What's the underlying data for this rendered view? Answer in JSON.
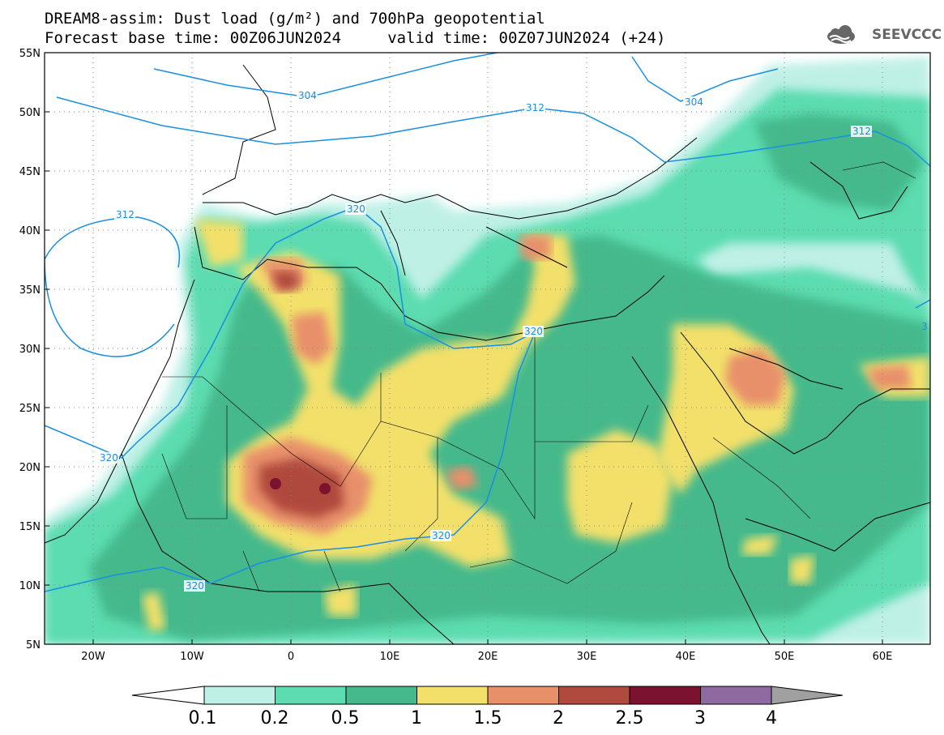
{
  "title": {
    "line1": "DREAM8-assim: Dust load (g/m²) and 700hPa geopotential",
    "line2": "Forecast base time: 00Z06JUN2024     valid time: 00Z07JUN2024 (+24)"
  },
  "logo": {
    "text": "SEEVCCC",
    "icon": "cloud-icon"
  },
  "map": {
    "lat_labels": [
      "55N",
      "50N",
      "45N",
      "40N",
      "35N",
      "30N",
      "25N",
      "20N",
      "15N",
      "10N",
      "5N"
    ],
    "lon_labels": [
      "20W",
      "10W",
      "0",
      "10E",
      "20E",
      "30E",
      "40E",
      "50E",
      "60E"
    ],
    "lon_range": [
      -25,
      65
    ],
    "lat_range": [
      5,
      55
    ],
    "contour_labels": [
      "304",
      "312",
      "304",
      "312",
      "312",
      "320",
      "320",
      "320",
      "320",
      "320",
      "3"
    ]
  },
  "colorbar": {
    "labels": [
      "0.1",
      "0.2",
      "0.5",
      "1",
      "1.5",
      "2",
      "2.5",
      "3",
      "4"
    ],
    "colors": [
      "#bff0e6",
      "#5cdcb0",
      "#45b98c",
      "#f2e06a",
      "#e8906a",
      "#b04a3e",
      "#7a1230",
      "#8e6aa0"
    ],
    "under_color": "#ffffff",
    "over_color": "#a0a0a0"
  }
}
